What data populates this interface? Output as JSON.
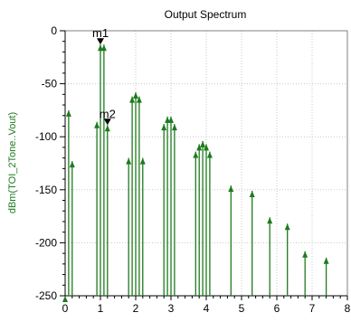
{
  "chart_data": {
    "type": "stem",
    "title": "Output Spectrum",
    "ylabel": "dBm(TOI_2Tone..Vout)",
    "xlabel": "",
    "xlim": [
      0,
      8
    ],
    "ylim": [
      -250,
      0
    ],
    "x_ticks": [
      0,
      1,
      2,
      3,
      4,
      5,
      6,
      7,
      8
    ],
    "y_ticks": [
      0,
      -50,
      -100,
      -150,
      -200,
      -250
    ],
    "grid": true,
    "color": "#1e7a1e",
    "baseline": -250,
    "points": [
      {
        "x": 0.0,
        "y": -250
      },
      {
        "x": 0.1,
        "y": -75
      },
      {
        "x": 0.2,
        "y": -123
      },
      {
        "x": 0.9,
        "y": -86
      },
      {
        "x": 1.0,
        "y": -13
      },
      {
        "x": 1.1,
        "y": -13
      },
      {
        "x": 1.2,
        "y": -89
      },
      {
        "x": 1.8,
        "y": -120
      },
      {
        "x": 1.9,
        "y": -62
      },
      {
        "x": 2.0,
        "y": -58
      },
      {
        "x": 2.1,
        "y": -62
      },
      {
        "x": 2.2,
        "y": -120
      },
      {
        "x": 2.8,
        "y": -88
      },
      {
        "x": 2.9,
        "y": -81
      },
      {
        "x": 3.0,
        "y": -81
      },
      {
        "x": 3.1,
        "y": -88
      },
      {
        "x": 3.7,
        "y": -114
      },
      {
        "x": 3.8,
        "y": -107
      },
      {
        "x": 3.9,
        "y": -104
      },
      {
        "x": 4.0,
        "y": -107
      },
      {
        "x": 4.1,
        "y": -114
      },
      {
        "x": 4.7,
        "y": -146
      },
      {
        "x": 5.3,
        "y": -151
      },
      {
        "x": 5.8,
        "y": -176
      },
      {
        "x": 6.3,
        "y": -182
      },
      {
        "x": 6.8,
        "y": -208
      },
      {
        "x": 7.4,
        "y": -214
      }
    ],
    "markers": [
      {
        "label": "m1",
        "x": 1.0,
        "y": -13
      },
      {
        "label": "m2",
        "x": 1.2,
        "y": -89
      }
    ]
  }
}
